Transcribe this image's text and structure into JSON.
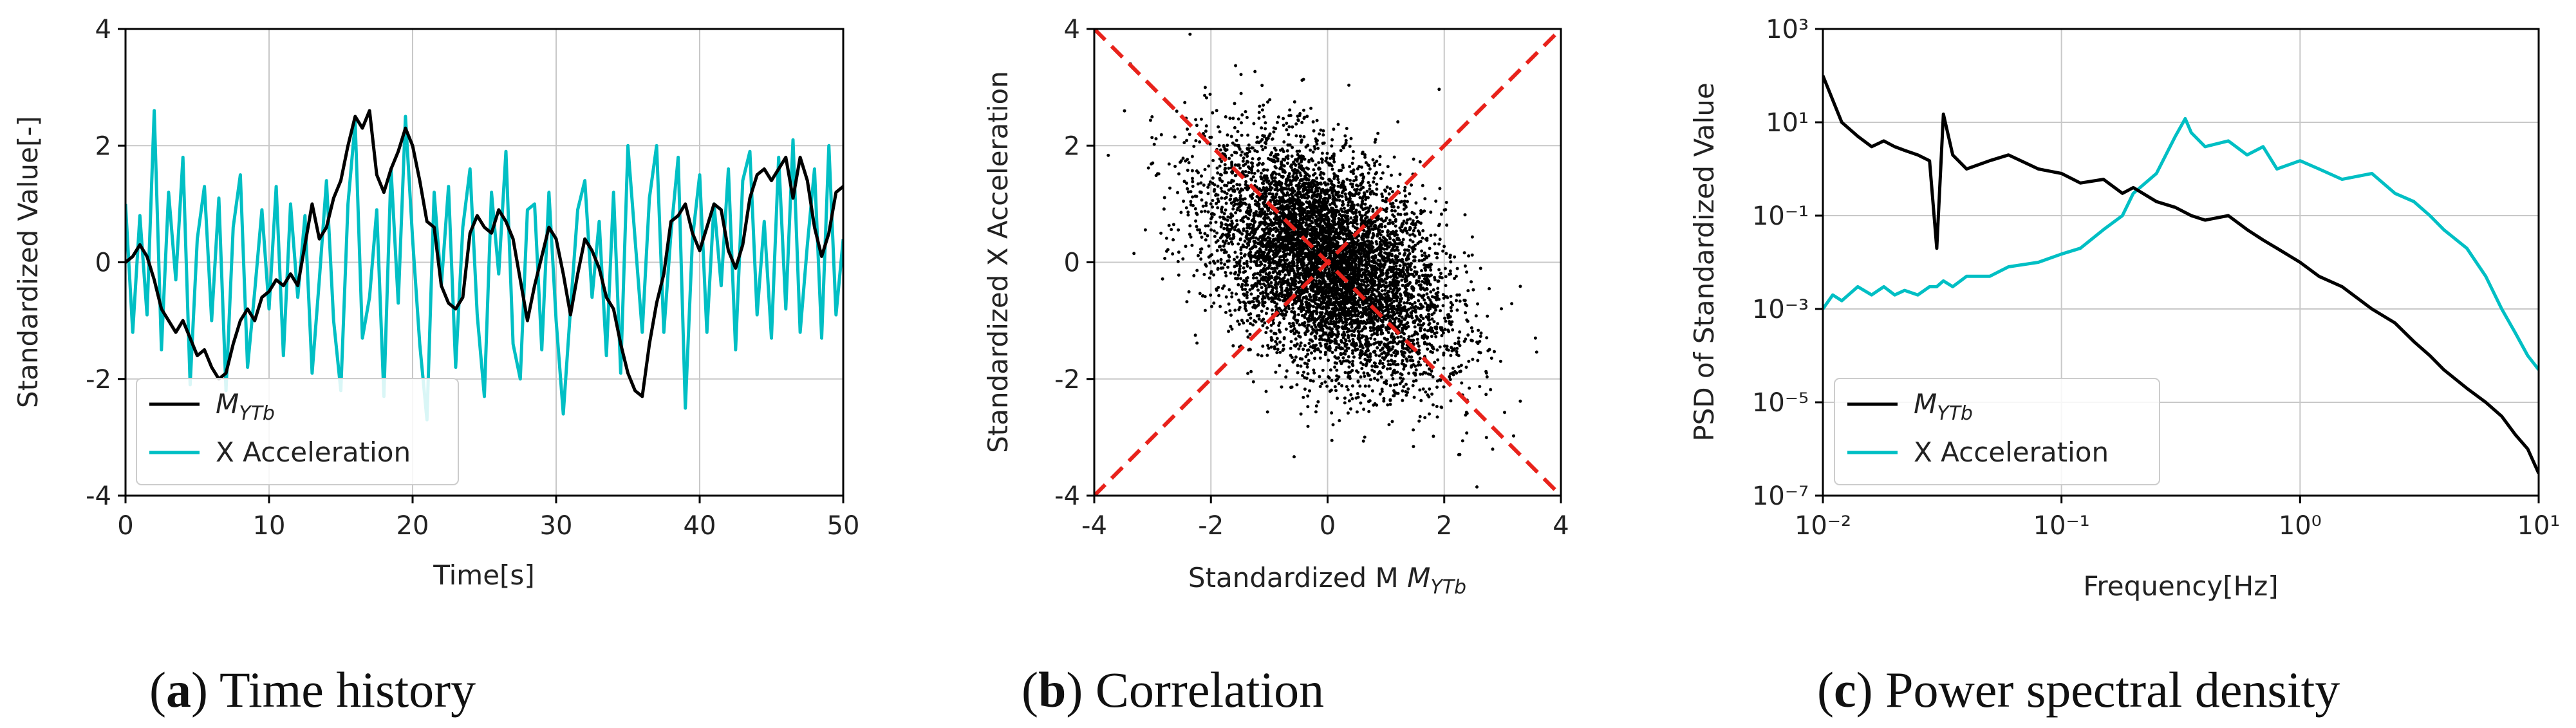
{
  "colors": {
    "myt": "#000000",
    "xacc": "#00bfc4",
    "ref": "#e8221b",
    "grid": "#c8c8c8"
  },
  "chart_data": [
    {
      "id": "time",
      "type": "line",
      "title": "",
      "xlabel": "Time[s]",
      "ylabel": "Standardized Value[-]",
      "xlim": [
        0,
        50
      ],
      "ylim": [
        -4,
        4
      ],
      "xticks": [
        0,
        10,
        20,
        30,
        40,
        50
      ],
      "yticks": [
        -4,
        -2,
        0,
        2,
        4
      ],
      "grid": true,
      "legend": {
        "position": "lower-left",
        "entries": [
          {
            "label": "M",
            "sub": "YTb",
            "color_key": "myt"
          },
          {
            "label": "X Acceleration",
            "color_key": "xacc"
          }
        ]
      },
      "series": [
        {
          "name": "M_YTb",
          "color_key": "myt",
          "x": [
            0,
            0.5,
            1,
            1.5,
            2,
            2.5,
            3,
            3.5,
            4,
            4.5,
            5,
            5.5,
            6,
            6.5,
            7,
            7.5,
            8,
            8.5,
            9,
            9.5,
            10,
            10.5,
            11,
            11.5,
            12,
            12.5,
            13,
            13.5,
            14,
            14.5,
            15,
            15.5,
            16,
            16.5,
            17,
            17.5,
            18,
            18.5,
            19,
            19.5,
            20,
            20.5,
            21,
            21.5,
            22,
            22.5,
            23,
            23.5,
            24,
            24.5,
            25,
            25.5,
            26,
            26.5,
            27,
            27.5,
            28,
            28.5,
            29,
            29.5,
            30,
            30.5,
            31,
            31.5,
            32,
            32.5,
            33,
            33.5,
            34,
            34.5,
            35,
            35.5,
            36,
            36.5,
            37,
            37.5,
            38,
            38.5,
            39,
            39.5,
            40,
            40.5,
            41,
            41.5,
            42,
            42.5,
            43,
            43.5,
            44,
            44.5,
            45,
            45.5,
            46,
            46.5,
            47,
            47.5,
            48,
            48.5,
            49,
            49.5,
            50
          ],
          "y": [
            0,
            0.1,
            0.3,
            0.1,
            -0.3,
            -0.8,
            -1.0,
            -1.2,
            -1.0,
            -1.3,
            -1.6,
            -1.5,
            -1.8,
            -2.0,
            -1.9,
            -1.4,
            -1.0,
            -0.8,
            -1.0,
            -0.6,
            -0.5,
            -0.3,
            -0.4,
            -0.2,
            -0.4,
            0.3,
            1.0,
            0.4,
            0.6,
            1.1,
            1.4,
            2.0,
            2.5,
            2.3,
            2.6,
            1.5,
            1.2,
            1.6,
            1.9,
            2.3,
            2.0,
            1.4,
            0.7,
            0.6,
            -0.4,
            -0.7,
            -0.8,
            -0.6,
            0.5,
            0.8,
            0.6,
            0.5,
            0.9,
            0.7,
            0.4,
            -0.3,
            -1.0,
            -0.4,
            0.1,
            0.6,
            0.4,
            -0.2,
            -0.9,
            -0.2,
            0.4,
            0.2,
            -0.1,
            -0.6,
            -0.8,
            -1.4,
            -1.9,
            -2.2,
            -2.3,
            -1.4,
            -0.7,
            -0.2,
            0.7,
            0.8,
            1.0,
            0.5,
            0.2,
            0.6,
            1.0,
            0.9,
            0.2,
            -0.1,
            0.3,
            1.1,
            1.5,
            1.6,
            1.4,
            1.6,
            1.8,
            1.1,
            1.8,
            1.4,
            0.6,
            0.1,
            0.5,
            1.2,
            1.3
          ]
        },
        {
          "name": "X Acceleration",
          "color_key": "xacc",
          "x": [
            0,
            0.5,
            1,
            1.5,
            2,
            2.5,
            3,
            3.5,
            4,
            4.5,
            5,
            5.5,
            6,
            6.5,
            7,
            7.5,
            8,
            8.5,
            9,
            9.5,
            10,
            10.5,
            11,
            11.5,
            12,
            12.5,
            13,
            13.5,
            14,
            14.5,
            15,
            15.5,
            16,
            16.5,
            17,
            17.5,
            18,
            18.5,
            19,
            19.5,
            20,
            20.5,
            21,
            21.5,
            22,
            22.5,
            23,
            23.5,
            24,
            24.5,
            25,
            25.5,
            26,
            26.5,
            27,
            27.5,
            28,
            28.5,
            29,
            29.5,
            30,
            30.5,
            31,
            31.5,
            32,
            32.5,
            33,
            33.5,
            34,
            34.5,
            35,
            35.5,
            36,
            36.5,
            37,
            37.5,
            38,
            38.5,
            39,
            39.5,
            40,
            40.5,
            41,
            41.5,
            42,
            42.5,
            43,
            43.5,
            44,
            44.5,
            45,
            45.5,
            46,
            46.5,
            47,
            47.5,
            48,
            48.5,
            49,
            49.5,
            50
          ],
          "y": [
            1.0,
            -1.2,
            0.8,
            -0.9,
            2.6,
            -1.5,
            1.2,
            -0.3,
            1.8,
            -2.1,
            0.4,
            1.3,
            -1.0,
            1.1,
            -2.2,
            0.6,
            1.5,
            -1.8,
            -0.5,
            0.9,
            -0.8,
            1.3,
            -1.6,
            1.0,
            -0.6,
            0.8,
            -1.9,
            -0.3,
            1.4,
            -1.0,
            -2.2,
            1.0,
            2.4,
            -1.3,
            -0.6,
            0.9,
            -2.3,
            1.6,
            -0.7,
            2.5,
            0.4,
            -1.4,
            -2.7,
            1.2,
            -0.4,
            1.3,
            -1.8,
            0.6,
            1.6,
            -0.9,
            -2.3,
            1.2,
            -0.2,
            1.9,
            -1.4,
            -2.0,
            0.9,
            1.0,
            -1.5,
            1.2,
            -1.0,
            -2.6,
            -0.8,
            0.9,
            1.4,
            -0.6,
            0.7,
            -1.6,
            1.2,
            -1.9,
            2.0,
            0.4,
            -1.2,
            1.1,
            2.0,
            -1.2,
            0.5,
            1.8,
            -2.5,
            0.4,
            1.5,
            -1.2,
            1.0,
            -0.4,
            1.6,
            -1.5,
            1.4,
            1.9,
            -0.9,
            0.7,
            -1.3,
            1.8,
            -0.8,
            2.1,
            -1.2,
            0.3,
            1.6,
            -1.3,
            2.0,
            -0.9,
            0.4
          ]
        }
      ]
    },
    {
      "id": "scatter",
      "type": "scatter",
      "title": "",
      "xlabel": "Standardized M",
      "xlabel_sub": "YTb",
      "ylabel": "Standardized X Acceleration",
      "xlim": [
        -4,
        4
      ],
      "ylim": [
        -4,
        4
      ],
      "xticks": [
        -4,
        -2,
        0,
        2,
        4
      ],
      "yticks": [
        -4,
        -2,
        0,
        2,
        4
      ],
      "grid": true,
      "point_count": 8000,
      "mean": [
        0,
        0
      ],
      "std": [
        1.0,
        1.0
      ],
      "correlation": -0.45,
      "reference_lines": [
        {
          "x": [
            -4,
            4
          ],
          "y": [
            4,
            -4
          ],
          "style": "dashed",
          "color_key": "ref"
        },
        {
          "x": [
            -4,
            4
          ],
          "y": [
            -4,
            4
          ],
          "style": "dashed",
          "color_key": "ref"
        }
      ]
    },
    {
      "id": "psd",
      "type": "line",
      "title": "",
      "xlabel": "Frequency[Hz]",
      "ylabel": "PSD of Standardized Value",
      "xscale": "log",
      "yscale": "log",
      "xlim": [
        0.01,
        10
      ],
      "ylim": [
        1e-07,
        1000
      ],
      "xtick_exponents": [
        -2,
        -1,
        0,
        1
      ],
      "ytick_exponents": [
        -7,
        -5,
        -3,
        -1,
        1,
        3
      ],
      "grid": true,
      "legend": {
        "position": "lower-left",
        "entries": [
          {
            "label": "M",
            "sub": "YTb",
            "color_key": "myt"
          },
          {
            "label": "X Acceleration",
            "color_key": "xacc"
          }
        ]
      },
      "series": [
        {
          "name": "M_YTb",
          "color_key": "myt",
          "x": [
            0.01,
            0.011,
            0.012,
            0.014,
            0.016,
            0.018,
            0.02,
            0.022,
            0.025,
            0.028,
            0.03,
            0.032,
            0.035,
            0.04,
            0.05,
            0.06,
            0.08,
            0.1,
            0.12,
            0.15,
            0.18,
            0.2,
            0.25,
            0.3,
            0.35,
            0.4,
            0.5,
            0.6,
            0.7,
            0.8,
            1.0,
            1.2,
            1.5,
            2.0,
            2.5,
            3.0,
            3.5,
            4.0,
            5.0,
            6.0,
            7.0,
            8.0,
            9.0,
            10.0
          ],
          "y": [
            100,
            30,
            10,
            5,
            3,
            4,
            3,
            2.5,
            2,
            1.5,
            0.02,
            15,
            2,
            1,
            1.5,
            2,
            1,
            0.8,
            0.5,
            0.6,
            0.3,
            0.4,
            0.2,
            0.15,
            0.1,
            0.08,
            0.1,
            0.05,
            0.03,
            0.02,
            0.01,
            0.005,
            0.003,
            0.001,
            0.0005,
            0.0002,
            0.0001,
            5e-05,
            2e-05,
            1e-05,
            5e-06,
            2e-06,
            1e-06,
            3e-07
          ]
        },
        {
          "name": "X Acceleration",
          "color_key": "xacc",
          "x": [
            0.01,
            0.011,
            0.012,
            0.014,
            0.016,
            0.018,
            0.02,
            0.022,
            0.025,
            0.028,
            0.03,
            0.032,
            0.035,
            0.04,
            0.05,
            0.06,
            0.08,
            0.1,
            0.12,
            0.15,
            0.18,
            0.2,
            0.25,
            0.3,
            0.33,
            0.35,
            0.4,
            0.5,
            0.6,
            0.7,
            0.8,
            1.0,
            1.2,
            1.5,
            2.0,
            2.5,
            3.0,
            3.5,
            4.0,
            5.0,
            6.0,
            7.0,
            8.0,
            9.0,
            10.0
          ],
          "y": [
            0.001,
            0.002,
            0.0015,
            0.003,
            0.002,
            0.003,
            0.002,
            0.0025,
            0.002,
            0.003,
            0.003,
            0.004,
            0.003,
            0.005,
            0.005,
            0.008,
            0.01,
            0.015,
            0.02,
            0.05,
            0.1,
            0.3,
            0.8,
            5,
            12,
            6,
            3,
            4,
            2,
            3,
            1,
            1.5,
            1,
            0.6,
            0.8,
            0.3,
            0.2,
            0.1,
            0.05,
            0.02,
            0.005,
            0.001,
            0.0003,
            0.0001,
            5e-05
          ]
        }
      ]
    }
  ],
  "captions": [
    {
      "letter": "a",
      "text": " Time history"
    },
    {
      "letter": "b",
      "text": " Correlation"
    },
    {
      "letter": "c",
      "text": " Power spectral density"
    }
  ]
}
